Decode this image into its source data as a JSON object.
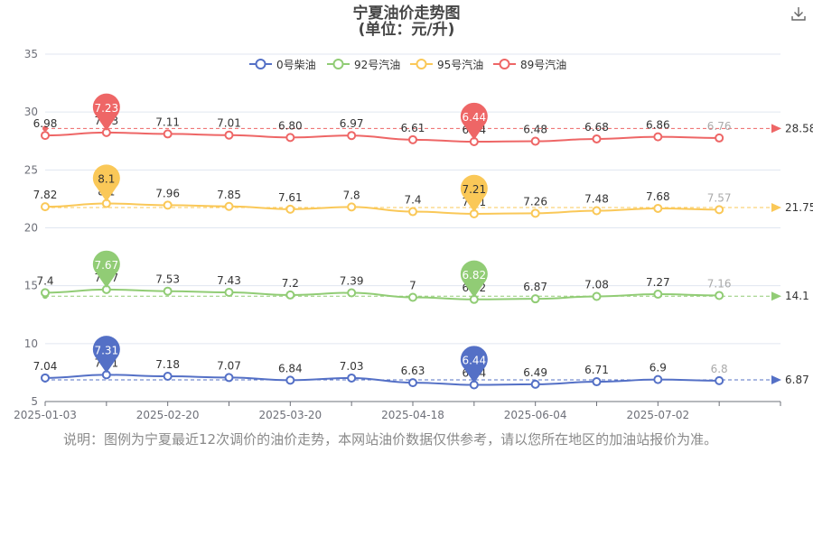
{
  "title_line1": "宁夏油价走势图",
  "title_line2": "(单位：元/升)",
  "note": "说明：图例为宁夏最近12次调价的油价走势，本网站油价数据仅供参考，请以您所在地区的加油站报价为准。",
  "download_icon": "download-icon",
  "chart_data": {
    "type": "line",
    "title": "宁夏油价走势图",
    "subtitle": "(单位：元/升)",
    "x_ticks": [
      "2025-01-03",
      "2025-02-20",
      "2025-03-20",
      "2025-04-18",
      "2025-06-04",
      "2025-07-02"
    ],
    "y_ticks": [
      5,
      10,
      15,
      20,
      25,
      30,
      35
    ],
    "ylim": [
      5,
      35
    ],
    "grid": true,
    "legend_position": "top",
    "series": [
      {
        "name": "0号柴油",
        "color": "#5470c6",
        "values": [
          7.04,
          7.31,
          7.18,
          7.07,
          6.84,
          7.03,
          6.63,
          6.44,
          6.49,
          6.71,
          6.9,
          6.8
        ],
        "value_labels": [
          "7.04",
          "7.31",
          "7.18",
          "7.07",
          "6.84",
          "7.03",
          "6.63",
          "6.44",
          "6.49",
          "6.71",
          "6.9",
          "6.8"
        ],
        "max": "7.31",
        "min": "6.44",
        "average": "6.87"
      },
      {
        "name": "92号汽油",
        "color": "#91cc75",
        "values": [
          7.4,
          7.67,
          7.53,
          7.43,
          7.2,
          7.39,
          7,
          6.82,
          6.87,
          7.08,
          7.27,
          7.16
        ],
        "value_labels": [
          "7.4",
          "7.67",
          "7.53",
          "7.43",
          "7.2",
          "7.39",
          "7",
          "6.82",
          "6.87",
          "7.08",
          "7.27",
          "7.16"
        ],
        "max": "7.67",
        "min": "6.82",
        "average": "14.1"
      },
      {
        "name": "95号汽油",
        "color": "#fac858",
        "values": [
          7.82,
          8.1,
          7.96,
          7.85,
          7.61,
          7.8,
          7.4,
          7.21,
          7.26,
          7.48,
          7.68,
          7.57
        ],
        "value_labels": [
          "7.82",
          "8.1",
          "7.96",
          "7.85",
          "7.61",
          "7.8",
          "7.4",
          "7.21",
          "7.26",
          "7.48",
          "7.68",
          "7.57"
        ],
        "max": "8.1",
        "min": "7.21",
        "average": "21.75"
      },
      {
        "name": "89号汽油",
        "color": "#ee6666",
        "values": [
          6.98,
          7.23,
          7.11,
          7.01,
          6.8,
          6.97,
          6.61,
          6.44,
          6.48,
          6.68,
          6.86,
          6.76
        ],
        "value_labels": [
          "6.98",
          "7.23",
          "7.11",
          "7.01",
          "6.80",
          "6.97",
          "6.61",
          "6.44",
          "6.48",
          "6.68",
          "6.86",
          "6.76"
        ],
        "max": "7.23",
        "min": "6.44",
        "average": "28.58"
      }
    ]
  }
}
